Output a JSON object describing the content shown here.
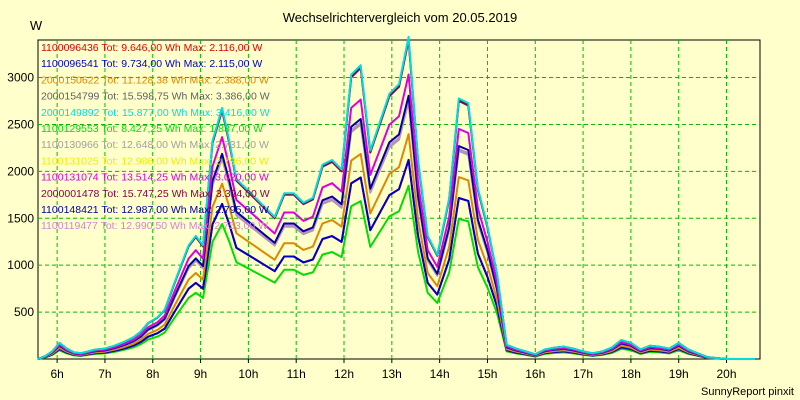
{
  "chart_data": {
    "type": "line",
    "title": "Wechselrichtervergleich vom 20.05.2019",
    "ylabel": "W",
    "xlabel": "",
    "ylim": [
      0,
      3400
    ],
    "xlim": [
      5.6,
      20.7
    ],
    "yticks": [
      500,
      1000,
      1500,
      2000,
      2500,
      3000
    ],
    "xticks": [
      {
        "x": 6,
        "label": "6h"
      },
      {
        "x": 7,
        "label": "7h"
      },
      {
        "x": 8,
        "label": "8h"
      },
      {
        "x": 9,
        "label": "9h"
      },
      {
        "x": 10,
        "label": "10h"
      },
      {
        "x": 11,
        "label": "11h"
      },
      {
        "x": 12,
        "label": "12h"
      },
      {
        "x": 13,
        "label": "13h"
      },
      {
        "x": 14,
        "label": "14h"
      },
      {
        "x": 15,
        "label": "15h"
      },
      {
        "x": 16,
        "label": "16h"
      },
      {
        "x": 17,
        "label": "17h"
      },
      {
        "x": 18,
        "label": "18h"
      },
      {
        "x": 19,
        "label": "19h"
      },
      {
        "x": 20,
        "label": "20h"
      }
    ],
    "grid": true,
    "legend_position": "top-left",
    "x": [
      5.6,
      5.75,
      5.9,
      6.05,
      6.2,
      6.35,
      6.5,
      6.65,
      6.8,
      7.0,
      7.2,
      7.4,
      7.6,
      7.75,
      7.9,
      8.1,
      8.25,
      8.45,
      8.6,
      8.75,
      8.9,
      9.05,
      9.25,
      9.45,
      9.6,
      9.75,
      9.95,
      10.15,
      10.35,
      10.55,
      10.75,
      10.95,
      11.15,
      11.35,
      11.55,
      11.75,
      11.95,
      12.15,
      12.35,
      12.55,
      12.75,
      12.95,
      13.15,
      13.35,
      13.55,
      13.75,
      13.95,
      14.2,
      14.4,
      14.6,
      14.8,
      15.0,
      15.2,
      15.4,
      15.6,
      15.8,
      16.0,
      16.2,
      16.4,
      16.6,
      16.8,
      17.0,
      17.2,
      17.4,
      17.6,
      17.8,
      18.0,
      18.2,
      18.4,
      18.6,
      18.8,
      19.0,
      19.2,
      19.4,
      19.6,
      19.8,
      20.0,
      20.2,
      20.4,
      20.6
    ],
    "series": [
      {
        "name": "1100096436",
        "total": "Tot: 9.646,00 Wh",
        "max": "Max: 2.116,00 W",
        "color": "#e00000",
        "scale": 0.624
      },
      {
        "name": "1100096541",
        "total": "Tot: 9.734,00 Wh",
        "max": "Max: 2.115,00 W",
        "color": "#0000cc",
        "scale": 0.624
      },
      {
        "name": "2000150622",
        "total": "Tot: 11.128,38 Wh",
        "max": "Max: 2.388,00 W",
        "color": "#dd8800",
        "scale": 0.705
      },
      {
        "name": "2000154799",
        "total": "Tot: 15.598,75 Wh",
        "max": "Max: 3.386,00 W",
        "color": "#606060",
        "scale": 1.0
      },
      {
        "name": "2000149892",
        "total": "Tot: 15.877,00 Wh",
        "max": "Max: 3.416,00 W",
        "color": "#00dddd",
        "scale": 1.01
      },
      {
        "name": "1100129553",
        "total": "Tot: 8.427,25 Wh",
        "max": "Max: 1.837,00 W",
        "color": "#00dd00",
        "scale": 0.543
      },
      {
        "name": "1100130966",
        "total": "Tot: 12.648,00 Wh",
        "max": "Max: 2.731,00 W",
        "color": "#a0a0a0",
        "scale": 0.806
      },
      {
        "name": "1100131025",
        "total": "Tot: 12.986,00 Wh",
        "max": "Max: 2.796,00 W",
        "color": "#eeee00",
        "scale": 0.825
      },
      {
        "name": "1100131074",
        "total": "Tot: 13.514,25 Wh",
        "max": "Max: 3.020,00 W",
        "color": "#dd00dd",
        "scale": 0.892
      },
      {
        "name": "2000001478",
        "total": "Tot: 15.747,25 Wh",
        "max": "Max: 3.394,00 W",
        "color": "#880044",
        "scale": 1.002
      },
      {
        "name": "1100148421",
        "total": "Tot: 12.987,00 Wh",
        "max": "Max: 2.795,00 W",
        "color": "#0000aa",
        "scale": 0.825
      },
      {
        "name": "1100119477",
        "total": "Tot: 12.990,50 Wh",
        "max": "Max: 2.753,00 W",
        "color": "#cc88cc",
        "scale": 0.813
      }
    ],
    "base_profile": [
      0,
      30,
      80,
      170,
      110,
      70,
      60,
      80,
      100,
      110,
      140,
      180,
      230,
      290,
      380,
      440,
      520,
      800,
      1000,
      1200,
      1300,
      1200,
      2300,
      2650,
      2300,
      1900,
      1800,
      1700,
      1600,
      1500,
      1750,
      1750,
      1650,
      1700,
      2050,
      2100,
      2000,
      3000,
      3100,
      2200,
      2500,
      2800,
      2900,
      3400,
      2100,
      1300,
      1100,
      1700,
      2750,
      2700,
      1800,
      1400,
      900,
      150,
      110,
      80,
      50,
      100,
      120,
      130,
      110,
      80,
      60,
      80,
      120,
      200,
      170,
      100,
      140,
      130,
      110,
      170,
      100,
      60,
      20,
      10,
      0,
      0,
      0,
      0
    ]
  },
  "footer": "SunnyReport pinxit"
}
